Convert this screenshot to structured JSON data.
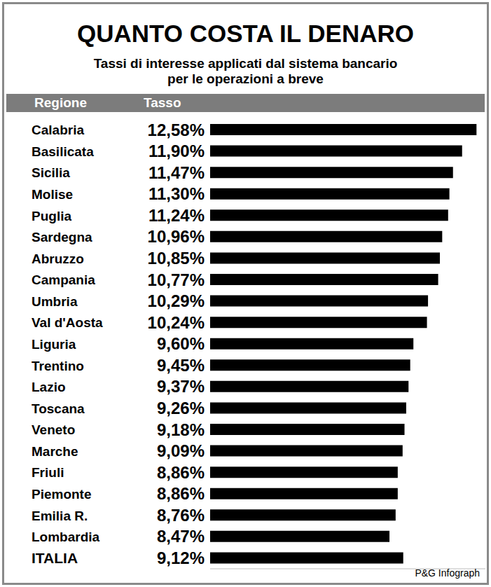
{
  "chart_data": {
    "type": "bar",
    "title": "QUANTO COSTA IL DENARO",
    "subtitle": "Tassi di interesse applicati dal sistema bancario per le operazioni a breve",
    "y_label": "Regione",
    "x_label": "Tasso",
    "source": "P&G Infograph",
    "orientation": "horizontal",
    "categories": [
      "Calabria",
      "Basilicata",
      "Sicilia",
      "Molise",
      "Puglia",
      "Sardegna",
      "Abruzzo",
      "Campania",
      "Umbria",
      "Val d'Aosta",
      "Liguria",
      "Trentino",
      "Lazio",
      "Toscana",
      "Veneto",
      "Marche",
      "Friuli",
      "Piemonte",
      "Emilia R.",
      "Lombardia",
      "ITALIA"
    ],
    "values": [
      12.58,
      11.9,
      11.47,
      11.3,
      11.24,
      10.96,
      10.85,
      10.77,
      10.29,
      10.24,
      9.6,
      9.45,
      9.37,
      9.26,
      9.18,
      9.09,
      8.86,
      8.86,
      8.76,
      8.47,
      9.12
    ],
    "value_labels": [
      "12,58%",
      "11,90%",
      "11,47%",
      "11,30%",
      "11,24%",
      "10,96%",
      "10,85%",
      "10,77%",
      "10,29%",
      "10,24%",
      "9,60%",
      "9,45%",
      "9,37%",
      "9,26%",
      "9,18%",
      "9,09%",
      "8,86%",
      "8,86%",
      "8,76%",
      "8,47%",
      "9,12%"
    ],
    "color": "#000000",
    "xlim": [
      0,
      13
    ],
    "data_labels": true,
    "tick_labels": "y",
    "grid": false
  }
}
